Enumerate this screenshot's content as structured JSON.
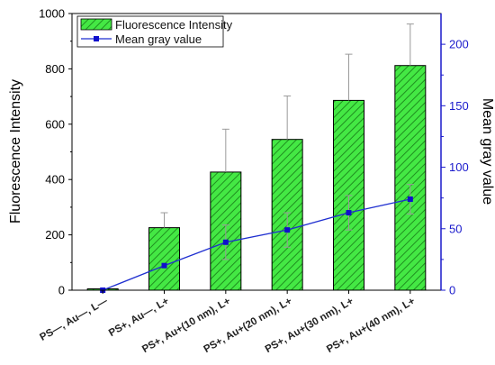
{
  "chart_data": {
    "type": "bar",
    "categories": [
      "PS—, Au—, L—",
      "PS+, Au—, L+",
      "PS+, Au+(10 nm), L+",
      "PS+, Au+(20 nm), L+",
      "PS+, Au+(30 nm), L+",
      "PS+, Au+(40 nm), L+"
    ],
    "series": [
      {
        "name": "Fluorescence Intensity",
        "type": "bar",
        "axis": "left",
        "values": [
          5,
          226,
          427,
          545,
          686,
          812
        ],
        "error": [
          0,
          54,
          155,
          157,
          167,
          150
        ]
      },
      {
        "name": "Mean gray value",
        "type": "line",
        "axis": "right",
        "values": [
          0,
          20,
          39,
          49,
          63,
          74
        ],
        "error": [
          0,
          0,
          14,
          14,
          14,
          12
        ]
      }
    ],
    "ylabel": "Fluorescence Intensity",
    "y2label": "Mean gray value",
    "ylim": [
      0,
      1000
    ],
    "yticks": [
      0,
      200,
      400,
      600,
      800,
      1000
    ],
    "y2lim": [
      0,
      225
    ],
    "y2ticks": [
      0,
      50,
      100,
      150,
      200
    ],
    "grid": false,
    "legend_position": "top-left",
    "colors": {
      "bar_fill": "#44e844",
      "bar_hatch": "#1f8f1f",
      "bar_stroke": "#000000",
      "line": "#1f2fd0",
      "marker": "#1010cc",
      "right_axis": "#1a1acc",
      "error_bar": "#9a9a9a"
    }
  }
}
